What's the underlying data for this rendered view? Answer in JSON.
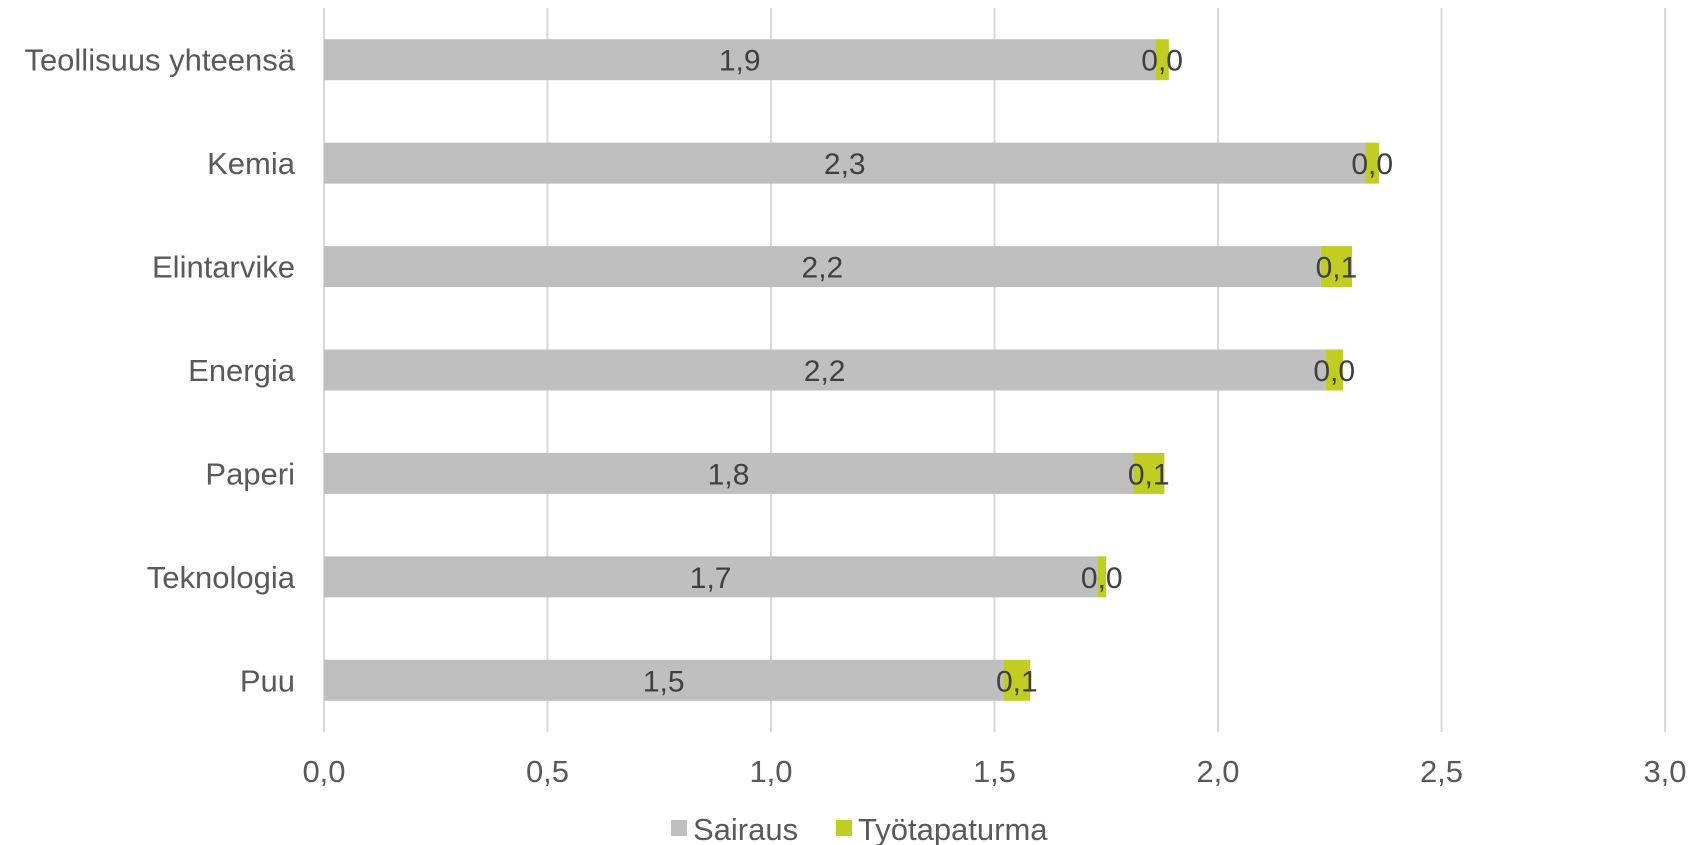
{
  "chart_data": {
    "type": "bar",
    "orientation": "horizontal",
    "stacked": true,
    "categories": [
      "Teollisuus yhteensä",
      "Kemia",
      "Elintarvike",
      "Energia",
      "Paperi",
      "Teknologia",
      "Puu"
    ],
    "series": [
      {
        "name": "Sairaus",
        "color": "#bfbfbf",
        "values": [
          1.86,
          2.33,
          2.23,
          2.24,
          1.81,
          1.73,
          1.52
        ],
        "labels": [
          "1,9",
          "2,3",
          "2,2",
          "2,2",
          "1,8",
          "1,7",
          "1,5"
        ]
      },
      {
        "name": "Työtapaturma",
        "color": "#c2cd23",
        "values": [
          0.03,
          0.03,
          0.07,
          0.04,
          0.07,
          0.02,
          0.06
        ],
        "labels": [
          "0,0",
          "0,0",
          "0,1",
          "0,0",
          "0,1",
          "0,0",
          "0,1"
        ]
      }
    ],
    "xlim": [
      0,
      3.0
    ],
    "x_ticks": [
      "0,0",
      "0,5",
      "1,0",
      "1,5",
      "2,0",
      "2,5",
      "3,0"
    ],
    "grid": true,
    "legend_position": "bottom",
    "xlabel": "",
    "ylabel": "",
    "title": ""
  }
}
